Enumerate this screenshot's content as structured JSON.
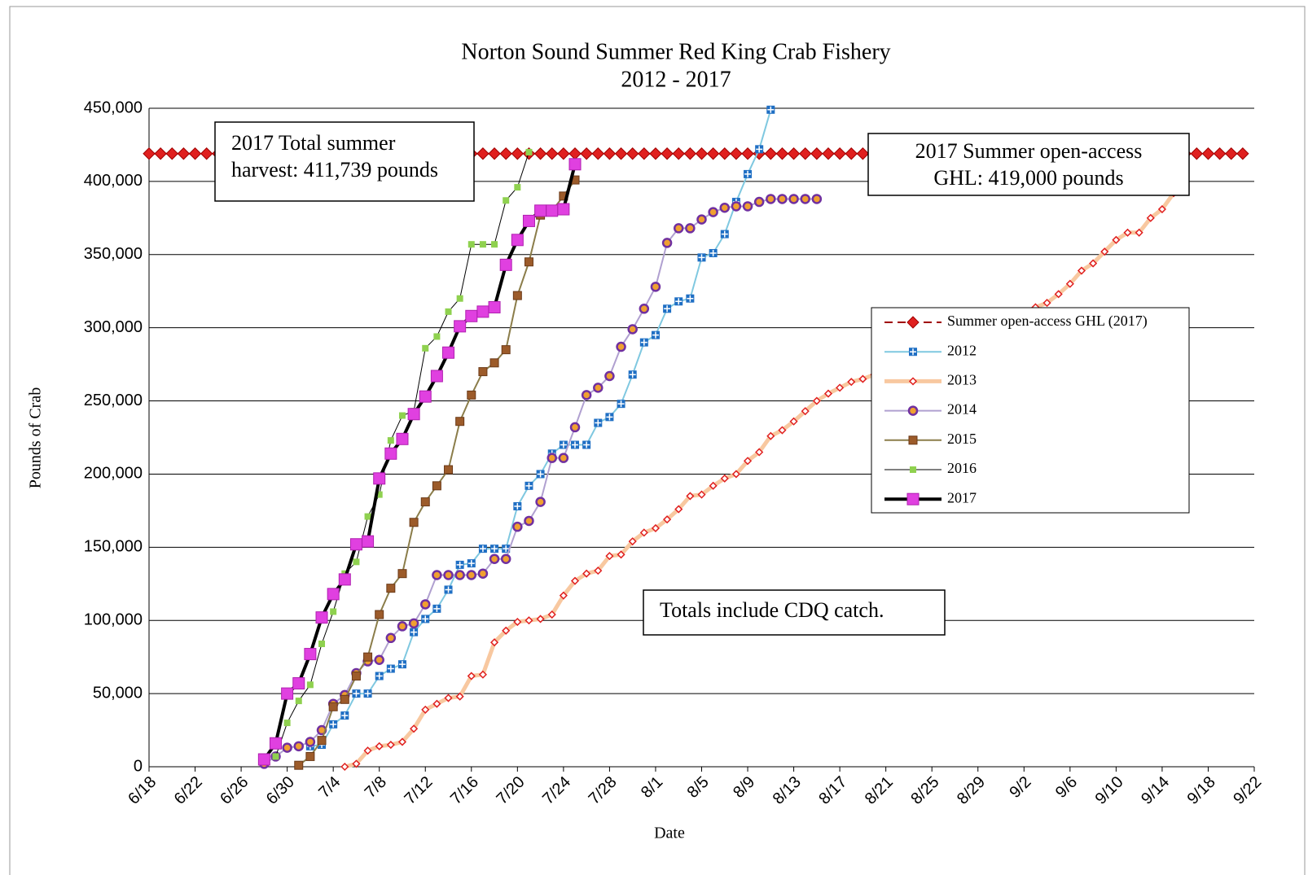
{
  "chart_data": {
    "type": "line",
    "title": "Norton Sound Summer Red King Crab Fishery",
    "subtitle": "2012 - 2017",
    "y_label": "Pounds of Crab",
    "x_label": "Date",
    "grid": true,
    "legend": "right",
    "xlim": [
      "6/18",
      "9/22"
    ],
    "xticks": [
      "6/18",
      "6/22",
      "6/26",
      "6/30",
      "7/4",
      "7/8",
      "7/12",
      "7/16",
      "7/20",
      "7/24",
      "7/28",
      "8/1",
      "8/5",
      "8/9",
      "8/13",
      "8/17",
      "8/21",
      "8/25",
      "8/29",
      "9/2",
      "9/6",
      "9/10",
      "9/14",
      "9/18",
      "9/22"
    ],
    "ylim": [
      0,
      450000
    ],
    "yticks": [
      0,
      {
        "value": 50000,
        "label": "50,000"
      },
      {
        "value": 100000,
        "label": "100,000"
      },
      {
        "value": 150000,
        "label": "150,000"
      },
      {
        "value": 200000,
        "label": "200,000"
      },
      {
        "value": 250000,
        "label": "250,000"
      },
      {
        "value": 300000,
        "label": "300,000"
      },
      {
        "value": 350000,
        "label": "350,000"
      },
      {
        "value": 400000,
        "label": "400,000"
      },
      {
        "value": 450000,
        "label": "450,000"
      }
    ],
    "annotations": [
      {
        "lines": [
          "2017 Total summer",
          "harvest:  411,739 pounds"
        ]
      },
      {
        "lines": [
          "2017 Summer open-access",
          "GHL: 419,000 pounds"
        ]
      },
      {
        "lines": [
          "Totals include CDQ catch."
        ]
      }
    ],
    "series": [
      {
        "name": "Summer open-access GHL (2017)",
        "color": "#a00000",
        "marker_color": "#e0201f",
        "marker": "diamond",
        "line_width": 2,
        "dash": true,
        "x": [
          "6/18",
          "6/19",
          "6/20",
          "6/21",
          "6/22",
          "6/23",
          "6/24",
          "6/25",
          "6/26",
          "6/27",
          "6/28",
          "6/29",
          "6/30",
          "7/1",
          "7/2",
          "7/3",
          "7/4",
          "7/5",
          "7/6",
          "7/7",
          "7/8",
          "7/9",
          "7/10",
          "7/11",
          "7/12",
          "7/13",
          "7/14",
          "7/15",
          "7/16",
          "7/17",
          "7/18",
          "7/19",
          "7/20",
          "7/21",
          "7/22",
          "7/23",
          "7/24",
          "7/25",
          "7/26",
          "7/27",
          "7/28",
          "7/29",
          "7/30",
          "7/31",
          "8/1",
          "8/2",
          "8/3",
          "8/4",
          "8/5",
          "8/6",
          "8/7",
          "8/8",
          "8/9",
          "8/10",
          "8/11",
          "8/12",
          "8/13",
          "8/14",
          "8/15",
          "8/16",
          "8/17",
          "8/18",
          "8/19",
          "8/20",
          "8/21",
          "8/22",
          "8/23",
          "8/24",
          "8/25",
          "8/26",
          "8/27",
          "8/28",
          "8/29",
          "8/30",
          "8/31",
          "9/1",
          "9/2",
          "9/3",
          "9/4",
          "9/5",
          "9/6",
          "9/7",
          "9/8",
          "9/9",
          "9/10",
          "9/11",
          "9/12",
          "9/13",
          "9/14",
          "9/15",
          "9/16",
          "9/17",
          "9/18",
          "9/19",
          "9/20",
          "9/21"
        ],
        "values": [
          419000,
          419000,
          419000,
          419000,
          419000,
          419000,
          419000,
          419000,
          419000,
          419000,
          419000,
          419000,
          419000,
          419000,
          419000,
          419000,
          419000,
          419000,
          419000,
          419000,
          419000,
          419000,
          419000,
          419000,
          419000,
          419000,
          419000,
          419000,
          419000,
          419000,
          419000,
          419000,
          419000,
          419000,
          419000,
          419000,
          419000,
          419000,
          419000,
          419000,
          419000,
          419000,
          419000,
          419000,
          419000,
          419000,
          419000,
          419000,
          419000,
          419000,
          419000,
          419000,
          419000,
          419000,
          419000,
          419000,
          419000,
          419000,
          419000,
          419000,
          419000,
          419000,
          419000,
          419000,
          419000,
          419000,
          419000,
          419000,
          419000,
          419000,
          419000,
          419000,
          419000,
          419000,
          419000,
          419000,
          419000,
          419000,
          419000,
          419000,
          419000,
          419000,
          419000,
          419000,
          419000,
          419000,
          419000,
          419000,
          419000,
          419000,
          419000,
          419000,
          419000,
          419000,
          419000,
          419000
        ]
      },
      {
        "name": "2012",
        "color": "#7fc8e0",
        "marker_color": "#1f6fc4",
        "marker": "cross-square",
        "line_width": 2,
        "dash": false,
        "x": [
          "7/2",
          "7/3",
          "7/4",
          "7/5",
          "7/6",
          "7/7",
          "7/8",
          "7/9",
          "7/10",
          "7/11",
          "7/12",
          "7/13",
          "7/14",
          "7/15",
          "7/16",
          "7/17",
          "7/18",
          "7/19",
          "7/20",
          "7/21",
          "7/22",
          "7/23",
          "7/24",
          "7/25",
          "7/26",
          "7/27",
          "7/28",
          "7/29",
          "7/30",
          "7/31",
          "8/1",
          "8/2",
          "8/3",
          "8/4",
          "8/5",
          "8/6",
          "8/7",
          "8/8",
          "8/9",
          "8/10",
          "8/11"
        ],
        "values": [
          14000,
          15000,
          29000,
          35000,
          50000,
          50000,
          62000,
          67000,
          70000,
          92000,
          101000,
          108000,
          121000,
          138000,
          139000,
          149000,
          149000,
          149000,
          178000,
          192000,
          200000,
          214000,
          220000,
          220000,
          220000,
          235000,
          239000,
          248000,
          268000,
          290000,
          295000,
          313000,
          318000,
          320000,
          348000,
          351000,
          364000,
          386000,
          405000,
          422000,
          449000
        ]
      },
      {
        "name": "2013",
        "color": "#f8c8a0",
        "marker_color": "#e0201f",
        "marker": "open-diamond",
        "line_width": 5,
        "dash": false,
        "x": [
          "7/5",
          "7/6",
          "7/7",
          "7/8",
          "7/9",
          "7/10",
          "7/11",
          "7/12",
          "7/13",
          "7/14",
          "7/15",
          "7/16",
          "7/17",
          "7/18",
          "7/19",
          "7/20",
          "7/21",
          "7/22",
          "7/23",
          "7/24",
          "7/25",
          "7/26",
          "7/27",
          "7/28",
          "7/29",
          "7/30",
          "7/31",
          "8/1",
          "8/2",
          "8/3",
          "8/4",
          "8/5",
          "8/6",
          "8/7",
          "8/8",
          "8/9",
          "8/10",
          "8/11",
          "8/12",
          "8/13",
          "8/14",
          "8/15",
          "8/16",
          "8/17",
          "8/18",
          "8/19",
          "8/20",
          "8/21",
          "8/22",
          "8/23",
          "8/24",
          "8/25",
          "8/26",
          "8/27",
          "8/28",
          "8/29",
          "8/30",
          "8/31",
          "9/1",
          "9/2",
          "9/3",
          "9/4",
          "9/5",
          "9/6",
          "9/7",
          "9/8",
          "9/9",
          "9/10",
          "9/11",
          "9/12",
          "9/13",
          "9/14",
          "9/15"
        ],
        "values": [
          0,
          2000,
          11000,
          14000,
          15000,
          17000,
          26000,
          39000,
          43000,
          47000,
          48000,
          62000,
          63000,
          85000,
          93000,
          99000,
          100000,
          101000,
          104000,
          117000,
          127000,
          132000,
          134000,
          144000,
          145000,
          154000,
          160000,
          163000,
          169000,
          176000,
          185000,
          186000,
          192000,
          197000,
          200000,
          209000,
          215000,
          226000,
          230000,
          236000,
          243000,
          250000,
          255000,
          259000,
          263000,
          265000,
          268000,
          271000,
          275000,
          278000,
          281000,
          284000,
          288000,
          291000,
          294000,
          297000,
          301000,
          304000,
          307000,
          310000,
          314000,
          317000,
          323000,
          330000,
          339000,
          344000,
          352000,
          360000,
          365000,
          365000,
          375000,
          381000,
          392000
        ]
      },
      {
        "name": "2014",
        "color": "#b0a0d0",
        "marker_color": "#7030a0",
        "marker": "ring",
        "line_width": 2,
        "dash": false,
        "x": [
          "6/28",
          "6/29",
          "6/30",
          "7/1",
          "7/2",
          "7/3",
          "7/4",
          "7/5",
          "7/6",
          "7/7",
          "7/8",
          "7/9",
          "7/10",
          "7/11",
          "7/12",
          "7/13",
          "7/14",
          "7/15",
          "7/16",
          "7/17",
          "7/18",
          "7/19",
          "7/20",
          "7/21",
          "7/22",
          "7/23",
          "7/24",
          "7/25",
          "7/26",
          "7/27",
          "7/28",
          "7/29",
          "7/30",
          "7/31",
          "8/1",
          "8/2",
          "8/3",
          "8/4",
          "8/5",
          "8/6",
          "8/7",
          "8/8",
          "8/9",
          "8/10",
          "8/11",
          "8/12",
          "8/13",
          "8/14",
          "8/15"
        ],
        "values": [
          2000,
          7000,
          13000,
          14000,
          17000,
          25000,
          43000,
          49000,
          64000,
          72000,
          73000,
          88000,
          96000,
          98000,
          111000,
          131000,
          131000,
          131000,
          131000,
          132000,
          142000,
          142000,
          164000,
          168000,
          181000,
          211000,
          211000,
          232000,
          254000,
          259000,
          267000,
          287000,
          299000,
          313000,
          328000,
          358000,
          368000,
          368000,
          374000,
          379000,
          382000,
          383000,
          383000,
          386000,
          388000,
          388000,
          388000,
          388000,
          388000
        ]
      },
      {
        "name": "2015",
        "color": "#8b7d4a",
        "marker_color": "#9c5b2a",
        "marker": "square",
        "line_width": 2,
        "dash": false,
        "x": [
          "7/1",
          "7/2",
          "7/3",
          "7/4",
          "7/5",
          "7/6",
          "7/7",
          "7/8",
          "7/9",
          "7/10",
          "7/11",
          "7/12",
          "7/13",
          "7/14",
          "7/15",
          "7/16",
          "7/17",
          "7/18",
          "7/19",
          "7/20",
          "7/21",
          "7/22",
          "7/23",
          "7/24",
          "7/25"
        ],
        "values": [
          1000,
          7000,
          18000,
          41000,
          46000,
          62000,
          75000,
          104000,
          122000,
          132000,
          167000,
          181000,
          192000,
          203000,
          236000,
          254000,
          270000,
          276000,
          285000,
          322000,
          345000,
          377000,
          380000,
          390000,
          401000
        ]
      },
      {
        "name": "2016",
        "color": "#000000",
        "marker_color": "#8fd14f",
        "marker": "small-square",
        "line_width": 1,
        "dash": false,
        "x": [
          "6/29",
          "6/30",
          "7/1",
          "7/2",
          "7/3",
          "7/4",
          "7/5",
          "7/6",
          "7/7",
          "7/8",
          "7/9",
          "7/10",
          "7/11",
          "7/12",
          "7/13",
          "7/14",
          "7/15",
          "7/16",
          "7/17",
          "7/18",
          "7/19",
          "7/20",
          "7/21"
        ],
        "values": [
          7000,
          30000,
          45000,
          56000,
          84000,
          106000,
          132000,
          140000,
          171000,
          186000,
          223000,
          240000,
          243000,
          286000,
          294000,
          311000,
          320000,
          357000,
          357000,
          357000,
          387000,
          396000,
          420000
        ]
      },
      {
        "name": "2017",
        "color": "#000000",
        "marker_color": "#e040e0",
        "marker": "big-square",
        "line_width": 4,
        "dash": false,
        "x": [
          "6/28",
          "6/29",
          "6/30",
          "7/1",
          "7/2",
          "7/3",
          "7/4",
          "7/5",
          "7/6",
          "7/7",
          "7/8",
          "7/9",
          "7/10",
          "7/11",
          "7/12",
          "7/13",
          "7/14",
          "7/15",
          "7/16",
          "7/17",
          "7/18",
          "7/19",
          "7/20",
          "7/21",
          "7/22",
          "7/23",
          "7/24",
          "7/25"
        ],
        "values": [
          5000,
          16000,
          50000,
          57000,
          77000,
          102000,
          118000,
          128000,
          152000,
          154000,
          197000,
          214000,
          224000,
          241000,
          253000,
          267000,
          283000,
          301000,
          308000,
          311000,
          314000,
          343000,
          360000,
          373000,
          380000,
          380000,
          381000,
          411739
        ]
      }
    ]
  }
}
